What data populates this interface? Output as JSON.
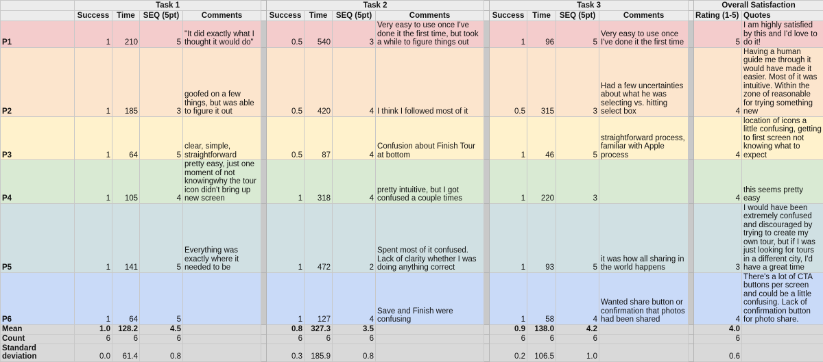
{
  "headers": {
    "task1": "Task 1",
    "task2": "Task 2",
    "task3": "Task 3",
    "overall": "Overall Satisfaction",
    "success": "Success",
    "time": "Time",
    "seq": "SEQ (5pt)",
    "comments": "Comments",
    "rating": "Rating (1-5)",
    "quotes": "Quotes"
  },
  "row_colors": [
    "#f4cccc",
    "#fce5cd",
    "#fff2cc",
    "#d9ead3",
    "#d0e0e3",
    "#c9daf8"
  ],
  "rows": [
    {
      "label": "P1",
      "t1": {
        "success": "1",
        "time": "210",
        "seq": "5",
        "comment": "\"It did exactly what I thought it would do\""
      },
      "t2": {
        "success": "0.5",
        "time": "540",
        "seq": "3",
        "comment": "Very easy to use once I've done it the first time, but took a while to figure things out"
      },
      "t3": {
        "success": "1",
        "time": "96",
        "seq": "5",
        "comment": "Very easy to use once I've done it the first time"
      },
      "rating": "5",
      "quote": "I am highly satisfied by this and I'd love to do it!"
    },
    {
      "label": "P2",
      "t1": {
        "success": "1",
        "time": "185",
        "seq": "3",
        "comment": "goofed on a few things, but was able to figure it out"
      },
      "t2": {
        "success": "0.5",
        "time": "420",
        "seq": "4",
        "comment": "I think I followed most of it"
      },
      "t3": {
        "success": "0.5",
        "time": "315",
        "seq": "3",
        "comment": "Had a few uncertainties about what he was selecting vs. hitting select box"
      },
      "rating": "4",
      "quote": "Having a human guide me through it would have made it easier. Most of it was intuitive. Within the zone of reasonable for trying something new"
    },
    {
      "label": "P3",
      "t1": {
        "success": "1",
        "time": "64",
        "seq": "5",
        "comment": "clear, simple, straightforward"
      },
      "t2": {
        "success": "0.5",
        "time": "87",
        "seq": "4",
        "comment": "Confusion about Finish Tour at bottom"
      },
      "t3": {
        "success": "1",
        "time": "46",
        "seq": "5",
        "comment": "straightforward process, familiar with Apple process"
      },
      "rating": "4",
      "quote": "location of icons a little confusing, getting to first screen not knowing what to expect"
    },
    {
      "label": "P4",
      "t1": {
        "success": "1",
        "time": "105",
        "seq": "4",
        "comment": "pretty easy, just one moment of not knowingwhy the tour icon didn't bring up new screen"
      },
      "t2": {
        "success": "1",
        "time": "318",
        "seq": "4",
        "comment": "pretty intuitive, but I got confused a couple times"
      },
      "t3": {
        "success": "1",
        "time": "220",
        "seq": "3",
        "comment": ""
      },
      "rating": "4",
      "quote": "this seems pretty easy"
    },
    {
      "label": "P5",
      "t1": {
        "success": "1",
        "time": "141",
        "seq": "5",
        "comment": "Everything was exactly where it needed to be"
      },
      "t2": {
        "success": "1",
        "time": "472",
        "seq": "2",
        "comment": "Spent most of it confused. Lack of clarity whether I was doing anything correct"
      },
      "t3": {
        "success": "1",
        "time": "93",
        "seq": "5",
        "comment": "it was how all sharing in the world happens"
      },
      "rating": "3",
      "quote": "I would have been extremely confused and discouraged by trying to create my own tour, but if I was just looking for tours in a different city, I'd have a great time"
    },
    {
      "label": "P6",
      "t1": {
        "success": "1",
        "time": "64",
        "seq": "5",
        "comment": ""
      },
      "t2": {
        "success": "1",
        "time": "127",
        "seq": "4",
        "comment": "Save and Finish were confusing"
      },
      "t3": {
        "success": "1",
        "time": "58",
        "seq": "4",
        "comment": "Wanted share button or confirmation that photos had been shared"
      },
      "rating": "4",
      "quote": "There's a lot of CTA buttons per screen and could be a little confusing. Lack of confirmation button for photo share."
    }
  ],
  "stats": [
    {
      "label": "Mean",
      "t1": [
        "1.0",
        "128.2",
        "4.5"
      ],
      "t2": [
        "0.8",
        "327.3",
        "3.5"
      ],
      "t3": [
        "0.9",
        "138.0",
        "4.2"
      ],
      "rating": "4.0"
    },
    {
      "label": "Count",
      "t1": [
        "6",
        "6",
        "6"
      ],
      "t2": [
        "6",
        "6",
        "6"
      ],
      "t3": [
        "6",
        "6",
        "6"
      ],
      "rating": "6"
    },
    {
      "label": "Standard deviation",
      "t1": [
        "0.0",
        "61.4",
        "0.8"
      ],
      "t2": [
        "0.3",
        "185.9",
        "0.8"
      ],
      "t3": [
        "0.2",
        "106.5",
        "1.0"
      ],
      "rating": "0.6"
    }
  ]
}
